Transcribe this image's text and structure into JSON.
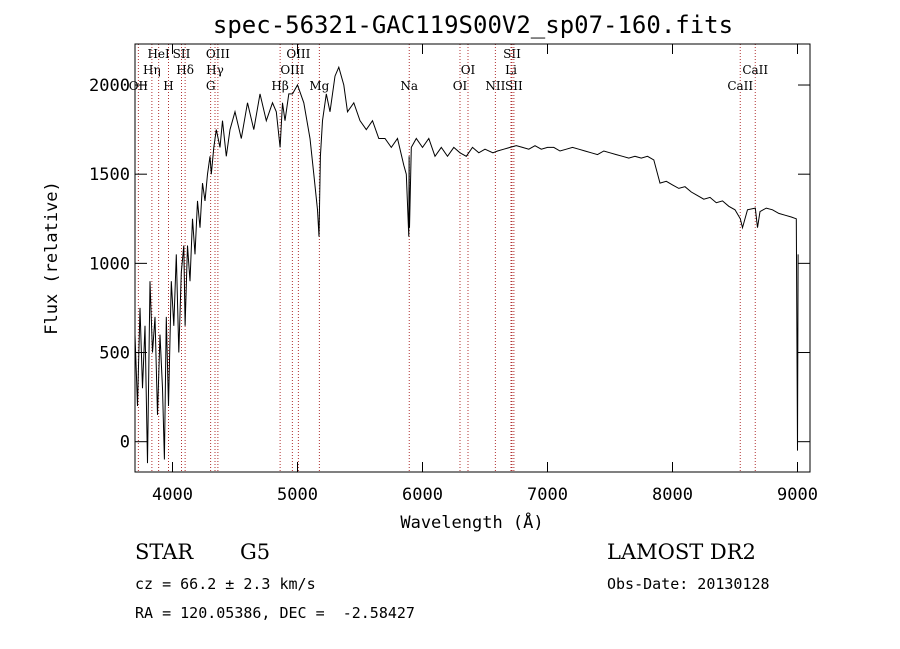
{
  "chart_data": {
    "type": "line",
    "title": "spec-56321-GAC119S00V2_sp07-160.fits",
    "xlabel": "Wavelength (Å)",
    "ylabel": "Flux (relative)",
    "xlim": [
      3700,
      9100
    ],
    "ylim": [
      -170,
      2230
    ],
    "xticks": [
      4000,
      5000,
      6000,
      7000,
      8000,
      9000
    ],
    "yticks": [
      0,
      500,
      1000,
      1500,
      2000
    ],
    "series": [
      {
        "x": [
          3700,
          3720,
          3740,
          3760,
          3780,
          3800,
          3820,
          3840,
          3860,
          3880,
          3900,
          3920,
          3935,
          3950,
          3968,
          3990,
          4010,
          4030,
          4050,
          4070,
          4090,
          4101,
          4120,
          4140,
          4160,
          4180,
          4200,
          4220,
          4240,
          4260,
          4280,
          4300,
          4310,
          4330,
          4350,
          4380,
          4400,
          4430,
          4460,
          4500,
          4550,
          4600,
          4650,
          4700,
          4750,
          4800,
          4830,
          4861,
          4880,
          4900,
          4930,
          4960,
          5000,
          5050,
          5100,
          5130,
          5160,
          5172,
          5183,
          5200,
          5230,
          5260,
          5300,
          5330,
          5370,
          5400,
          5450,
          5500,
          5550,
          5600,
          5650,
          5700,
          5750,
          5800,
          5850,
          5870,
          5890,
          5893,
          5896,
          5910,
          5950,
          6000,
          6050,
          6100,
          6150,
          6200,
          6250,
          6300,
          6350,
          6400,
          6450,
          6500,
          6563,
          6600,
          6650,
          6700,
          6750,
          6800,
          6850,
          6900,
          6950,
          7000,
          7050,
          7100,
          7150,
          7200,
          7250,
          7300,
          7350,
          7400,
          7450,
          7500,
          7550,
          7600,
          7650,
          7700,
          7750,
          7800,
          7850,
          7900,
          7950,
          8000,
          8050,
          8100,
          8150,
          8200,
          8250,
          8300,
          8350,
          8400,
          8450,
          8500,
          8542,
          8560,
          8600,
          8662,
          8680,
          8700,
          8750,
          8800,
          8850,
          8900,
          8950,
          8990,
          9000,
          9005
        ],
        "y": [
          600,
          200,
          750,
          300,
          650,
          -120,
          900,
          500,
          700,
          150,
          600,
          300,
          -100,
          700,
          200,
          900,
          650,
          1050,
          500,
          950,
          1100,
          650,
          1100,
          900,
          1250,
          1050,
          1350,
          1200,
          1450,
          1350,
          1500,
          1600,
          1500,
          1650,
          1750,
          1650,
          1800,
          1600,
          1750,
          1850,
          1700,
          1900,
          1750,
          1950,
          1800,
          1900,
          1850,
          1650,
          1900,
          1800,
          1950,
          1950,
          2000,
          1900,
          1700,
          1500,
          1300,
          1150,
          1600,
          1800,
          1950,
          1850,
          2050,
          2100,
          2000,
          1850,
          1900,
          1800,
          1750,
          1800,
          1700,
          1700,
          1650,
          1700,
          1550,
          1500,
          1150,
          1600,
          1200,
          1650,
          1700,
          1650,
          1700,
          1600,
          1650,
          1600,
          1650,
          1620,
          1600,
          1650,
          1620,
          1640,
          1620,
          1630,
          1640,
          1650,
          1660,
          1650,
          1640,
          1660,
          1640,
          1650,
          1650,
          1630,
          1640,
          1650,
          1640,
          1630,
          1620,
          1610,
          1630,
          1620,
          1610,
          1600,
          1590,
          1600,
          1590,
          1600,
          1580,
          1450,
          1460,
          1440,
          1420,
          1430,
          1400,
          1380,
          1360,
          1370,
          1340,
          1350,
          1320,
          1300,
          1250,
          1200,
          1300,
          1310,
          1200,
          1290,
          1310,
          1300,
          1280,
          1270,
          1260,
          1250,
          -50,
          1050
        ]
      }
    ],
    "lines_bottom": [
      {
        "label": "OII",
        "x": 3727
      },
      {
        "label": "Hη",
        "x": 3835
      },
      {
        "label": "HeI",
        "x": 3889
      },
      {
        "label": "H",
        "x": 3968
      },
      {
        "label": "Hδ",
        "x": 4101
      },
      {
        "label": "SII",
        "x": 4072
      },
      {
        "label": "G",
        "x": 4305
      },
      {
        "label": "Hγ",
        "x": 4340
      },
      {
        "label": "OIII",
        "x": 4363
      },
      {
        "label": "Hβ",
        "x": 4861
      },
      {
        "label": "OIII",
        "x": 4959
      },
      {
        "label": "OIII",
        "x": 5007
      },
      {
        "label": "Mg",
        "x": 5175
      },
      {
        "label": "Na",
        "x": 5894
      },
      {
        "label": "OI",
        "x": 6300
      },
      {
        "label": "OI",
        "x": 6364
      },
      {
        "label": "NII",
        "x": 6583
      },
      {
        "label": "Li",
        "x": 6708
      },
      {
        "label": "SII",
        "x": 6716
      },
      {
        "label": "SII",
        "x": 6731
      },
      {
        "label": "CaII",
        "x": 8542
      },
      {
        "label": "CaII",
        "x": 8662
      }
    ]
  },
  "info": {
    "object_type": "STAR",
    "subclass": "G5",
    "survey": "LAMOST DR2",
    "cz": "cz = 66.2 ± 2.3 km/s",
    "obs_date": "Obs-Date: 20130128",
    "coords": "RA = 120.05386, DEC =  -2.58427"
  }
}
